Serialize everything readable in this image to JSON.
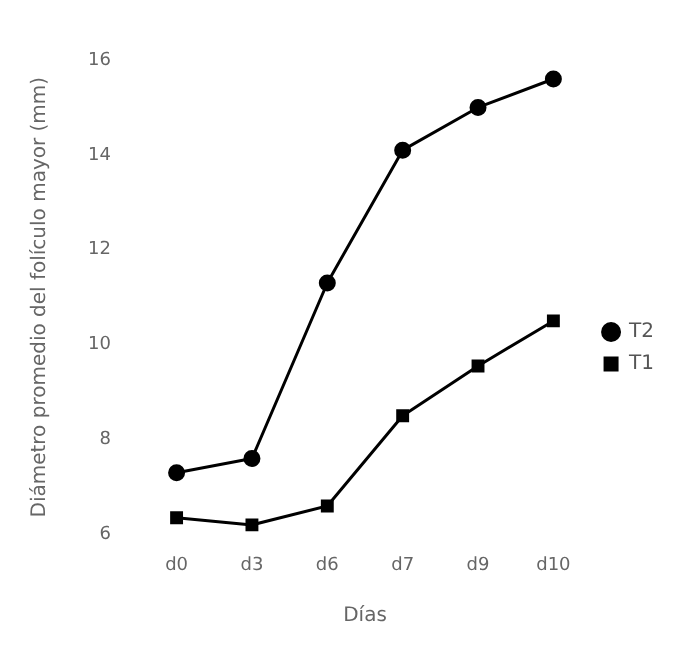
{
  "chart_data": {
    "type": "line",
    "xlabel": "Días",
    "ylabel": "Diámetro promedio del folículo mayor (mm)",
    "categories": [
      "d0",
      "d3",
      "d6",
      "d7",
      "d9",
      "d10"
    ],
    "series": [
      {
        "name": "T2",
        "color": "#000000",
        "marker": "circle",
        "values": [
          7.3,
          7.6,
          11.3,
          14.1,
          15.0,
          15.6
        ]
      },
      {
        "name": "T1",
        "color": "#000000",
        "marker": "square",
        "values": [
          6.35,
          6.2,
          6.6,
          8.5,
          9.55,
          10.5
        ]
      }
    ],
    "ylim": [
      6,
      16
    ],
    "yticks": [
      6,
      8,
      10,
      12,
      14,
      16
    ],
    "grid": false,
    "legend": "right",
    "line_style": "solid"
  }
}
